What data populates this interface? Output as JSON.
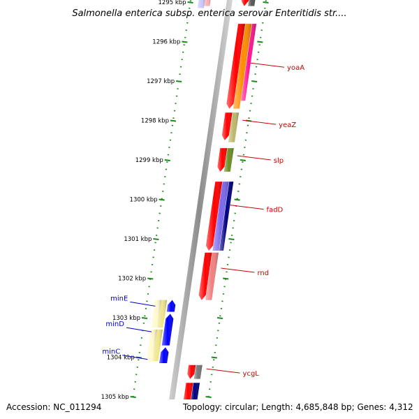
{
  "title": "Salmonella enterica subsp. enterica serovar Enteritidis str....",
  "footer": {
    "accession": "Accession: NC_011294",
    "topology": "Topology: circular; Length: 4,685,848 bp; Genes: 4,312"
  },
  "colors": {
    "backbone": "#999999",
    "forward_tick": "#1b8a1b",
    "reverse_tick": "#1b8a1b",
    "right_label": "#cc0000",
    "left_label": "#0000cc"
  },
  "ticks": [
    {
      "label": "1295 kbp",
      "kbp": 1295
    },
    {
      "label": "1296 kbp",
      "kbp": 1296
    },
    {
      "label": "1297 kbp",
      "kbp": 1297
    },
    {
      "label": "1298 kbp",
      "kbp": 1298
    },
    {
      "label": "1299 kbp",
      "kbp": 1299
    },
    {
      "label": "1300 kbp",
      "kbp": 1300
    },
    {
      "label": "1301 kbp",
      "kbp": 1301
    },
    {
      "label": "1302 kbp",
      "kbp": 1302
    },
    {
      "label": "1303 kbp",
      "kbp": 1303
    },
    {
      "label": "1304 kbp",
      "kbp": 1304
    },
    {
      "label": "1305 kbp",
      "kbp": 1305
    }
  ],
  "features": [
    {
      "track": "fwd-cds",
      "start": 1294.9,
      "end": 1295.1,
      "color": "#ffb0b0"
    },
    {
      "track": "fwd-gene",
      "start": 1294.9,
      "end": 1295.15,
      "color": "#c8c8ff"
    },
    {
      "track": "rev-gene",
      "start": 1294.9,
      "end": 1295.1,
      "color": "#ff0000"
    },
    {
      "track": "rev-cds",
      "start": 1294.9,
      "end": 1295.1,
      "color": "#555555"
    },
    {
      "track": "rev-gene",
      "start": 1295.55,
      "end": 1297.7,
      "color": "#ff0000"
    },
    {
      "track": "rev-cds",
      "start": 1295.55,
      "end": 1297.7,
      "color": "#ff8c00"
    },
    {
      "track": "rev-extra",
      "start": 1295.55,
      "end": 1297.5,
      "color": "#ff1493"
    },
    {
      "track": "rev-gene",
      "start": 1297.8,
      "end": 1298.5,
      "color": "#ff0000"
    },
    {
      "track": "rev-cds",
      "start": 1297.8,
      "end": 1298.55,
      "color": "#bdb76b"
    },
    {
      "track": "rev-gene",
      "start": 1298.7,
      "end": 1299.3,
      "color": "#ff0000"
    },
    {
      "track": "rev-cds",
      "start": 1298.7,
      "end": 1299.3,
      "color": "#6b8e23"
    },
    {
      "track": "rev-gene",
      "start": 1299.55,
      "end": 1301.3,
      "color": "#ff0000"
    },
    {
      "track": "rev-cds",
      "start": 1299.55,
      "end": 1301.3,
      "color": "#7b68ee"
    },
    {
      "track": "rev-extra",
      "start": 1299.55,
      "end": 1301.3,
      "color": "#000080"
    },
    {
      "track": "rev-gene",
      "start": 1301.35,
      "end": 1302.55,
      "color": "#ff0000"
    },
    {
      "track": "rev-cds",
      "start": 1301.35,
      "end": 1302.55,
      "color": "#f08080"
    },
    {
      "track": "fwd-cds",
      "start": 1302.55,
      "end": 1303.25,
      "color": "#f0e68c"
    },
    {
      "track": "fwd-gene",
      "start": 1302.55,
      "end": 1303.25,
      "color": "#fffacd"
    },
    {
      "track": "fwd-cds",
      "start": 1303.3,
      "end": 1304.1,
      "color": "#f0e68c"
    },
    {
      "track": "fwd-gene",
      "start": 1303.3,
      "end": 1304.1,
      "color": "#fffacd"
    },
    {
      "track": "fwd-near",
      "start": 1302.55,
      "end": 1302.85,
      "color": "#0000ff"
    },
    {
      "track": "fwd-near",
      "start": 1302.9,
      "end": 1303.7,
      "color": "#0000ff"
    },
    {
      "track": "fwd-near",
      "start": 1303.75,
      "end": 1304.15,
      "color": "#0000ff"
    },
    {
      "track": "rev-gene",
      "start": 1304.2,
      "end": 1304.55,
      "color": "#ff0000"
    },
    {
      "track": "rev-cds",
      "start": 1304.2,
      "end": 1304.55,
      "color": "#777777"
    },
    {
      "track": "rev-gene",
      "start": 1304.65,
      "end": 1305.35,
      "color": "#ff0000"
    },
    {
      "track": "rev-cds",
      "start": 1304.65,
      "end": 1305.35,
      "color": "#000080"
    },
    {
      "track": "rev-gene",
      "start": 1305.4,
      "end": 1305.6,
      "color": "#ff0000"
    },
    {
      "track": "rev-cds",
      "start": 1305.4,
      "end": 1305.6,
      "color": "#8b0000"
    }
  ],
  "gene_labels": [
    {
      "name": "yoaA",
      "side": "right",
      "kbp": 1296.65
    },
    {
      "name": "yeaZ",
      "side": "right",
      "kbp": 1298.1
    },
    {
      "name": "slp",
      "side": "right",
      "kbp": 1299.0
    },
    {
      "name": "fadD",
      "side": "right",
      "kbp": 1300.25
    },
    {
      "name": "rnd",
      "side": "right",
      "kbp": 1301.85
    },
    {
      "name": "ycgL",
      "side": "right",
      "kbp": 1304.4
    },
    {
      "name": "minE",
      "side": "left",
      "kbp": 1302.6
    },
    {
      "name": "minD",
      "side": "left",
      "kbp": 1303.25
    },
    {
      "name": "minC",
      "side": "left",
      "kbp": 1303.95
    }
  ]
}
